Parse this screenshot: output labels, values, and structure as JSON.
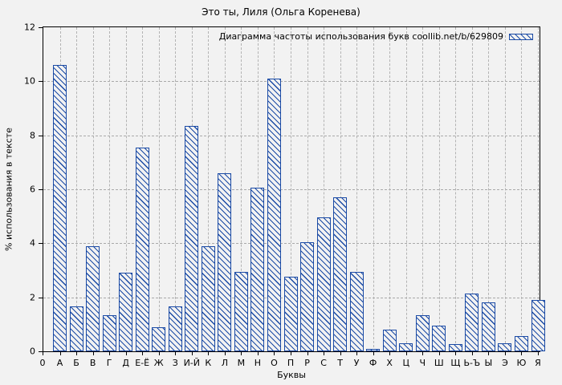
{
  "chart_data": {
    "type": "bar",
    "title": "Это ты, Лиля (Ольга Коренева)",
    "legend": "Диаграмма частоты использования букв coollib.net/b/629809",
    "legend_position": "top-right-inside",
    "xlabel": "Буквы",
    "ylabel": "% использования в тексте",
    "origin_label": "0",
    "ylim": [
      0,
      12
    ],
    "yticks": [
      0,
      2,
      4,
      6,
      8,
      10,
      12
    ],
    "grid": true,
    "categories": [
      "А",
      "Б",
      "В",
      "Г",
      "Д",
      "Е-Ё",
      "Ж",
      "З",
      "И-Й",
      "К",
      "Л",
      "М",
      "Н",
      "О",
      "П",
      "Р",
      "С",
      "Т",
      "У",
      "Ф",
      "Х",
      "Ц",
      "Ч",
      "Ш",
      "Щ",
      "Ь-Ъ",
      "Ы",
      "Э",
      "Ю",
      "Я"
    ],
    "values": [
      10.6,
      1.65,
      3.9,
      1.35,
      2.9,
      7.55,
      0.9,
      1.65,
      8.35,
      3.9,
      6.6,
      2.95,
      6.05,
      10.1,
      2.75,
      4.05,
      4.95,
      5.7,
      2.95,
      0.1,
      0.8,
      0.3,
      1.35,
      0.95,
      0.27,
      2.15,
      1.8,
      0.3,
      0.55,
      1.9
    ],
    "colors": {
      "bar_hatch": "#1a4aa5",
      "background": "#f2f2f2",
      "grid": "#a9a9a9",
      "axis": "#000000"
    }
  }
}
